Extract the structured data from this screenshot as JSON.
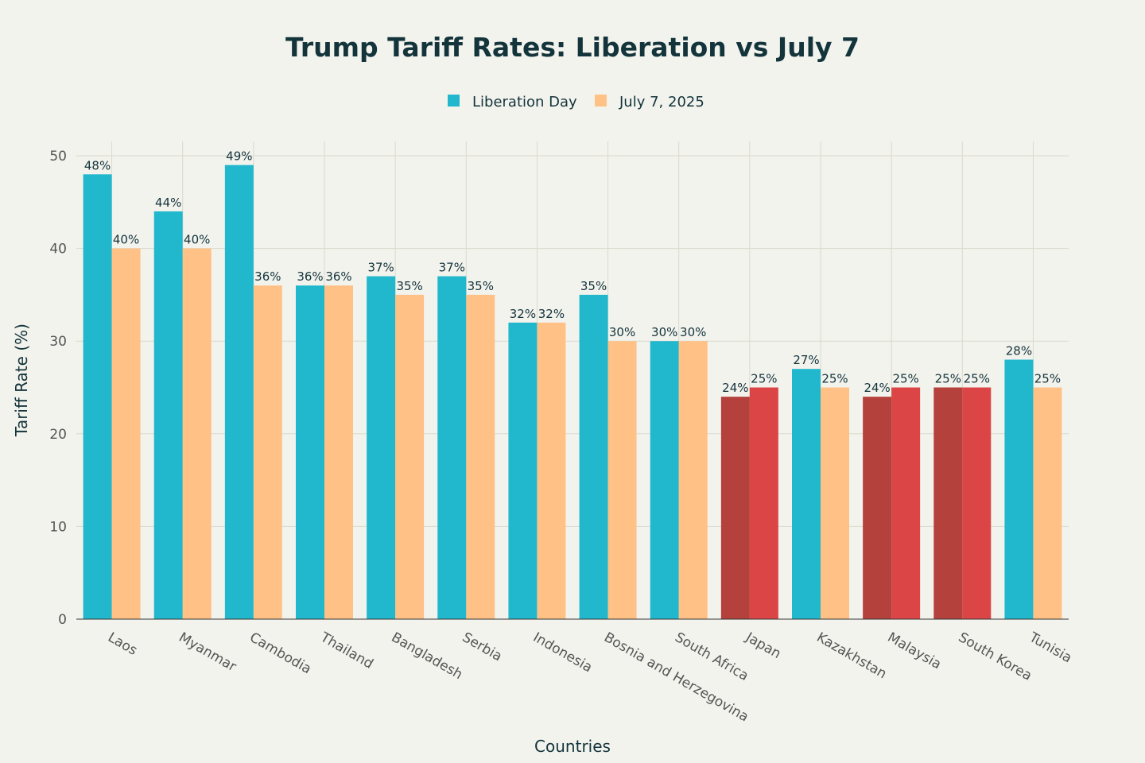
{
  "chart_data": {
    "type": "bar",
    "title": "Trump Tariff Rates: Liberation vs July 7",
    "xlabel": "Countries",
    "ylabel": "Tariff Rate (%)",
    "ylim": [
      0,
      50
    ],
    "yticks": [
      0,
      10,
      20,
      30,
      40,
      50
    ],
    "grid": true,
    "legend_position": "top-center",
    "categories": [
      "Laos",
      "Myanmar",
      "Cambodia",
      "Thailand",
      "Bangladesh",
      "Serbia",
      "Indonesia",
      "Bosnia and Herzegovina",
      "South Africa",
      "Japan",
      "Kazakhstan",
      "Malaysia",
      "South Korea",
      "Tunisia"
    ],
    "series": [
      {
        "name": "Liberation Day",
        "color": "#21B8CD",
        "values": [
          48,
          44,
          49,
          36,
          37,
          37,
          32,
          35,
          30,
          24,
          27,
          24,
          25,
          28
        ]
      },
      {
        "name": "July 7, 2025",
        "color": "#FFC185",
        "values": [
          40,
          40,
          36,
          36,
          35,
          35,
          32,
          30,
          30,
          25,
          25,
          25,
          25,
          25
        ]
      }
    ],
    "highlighted_categories": [
      "Japan",
      "Malaysia",
      "South Korea"
    ],
    "highlight_colors": [
      "#B4413C",
      "#DB4545"
    ],
    "label_suffix": "%"
  }
}
